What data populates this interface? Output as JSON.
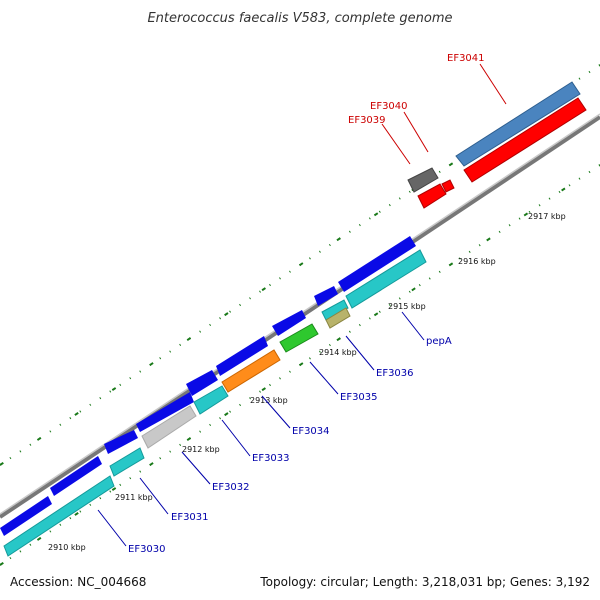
{
  "title": "Enterococcus faecalis V583, complete genome",
  "footer": {
    "accession": "Accession: NC_004668",
    "topology": "Topology: circular; Length: 3,218,031 bp; Genes: 3,192"
  },
  "colors": {
    "backbone": "#8a8a8a",
    "tick": "#1a7a1a",
    "label_forward": "#cc0000",
    "label_reverse": "#0000aa",
    "callout_forward": "#cc0000",
    "callout_reverse": "#0000aa"
  },
  "scale_labels": [
    "2910 kbp",
    "2911 kbp",
    "2912 kbp",
    "2913 kbp",
    "2914 kbp",
    "2915 kbp",
    "2916 kbp",
    "2917 kbp"
  ],
  "gene_labels": [
    {
      "name": "EF3030",
      "strand": "reverse"
    },
    {
      "name": "EF3031",
      "strand": "reverse"
    },
    {
      "name": "EF3032",
      "strand": "reverse"
    },
    {
      "name": "EF3033",
      "strand": "reverse"
    },
    {
      "name": "EF3034",
      "strand": "reverse"
    },
    {
      "name": "EF3035",
      "strand": "reverse"
    },
    {
      "name": "EF3036",
      "strand": "reverse"
    },
    {
      "name": "pepA",
      "strand": "reverse"
    },
    {
      "name": "EF3039",
      "strand": "forward"
    },
    {
      "name": "EF3040",
      "strand": "forward"
    },
    {
      "name": "EF3041",
      "strand": "forward"
    }
  ]
}
